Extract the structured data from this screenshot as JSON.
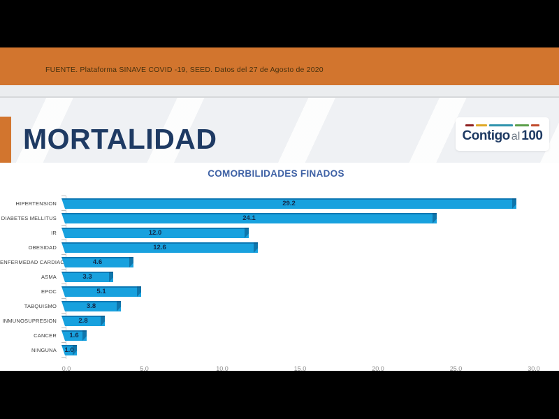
{
  "banner": {
    "source_text": "FUENTE. Plataforma SINAVE COVID -19, SEED. Datos del 27 de Agosto de 2020",
    "background_color": "#d2752e"
  },
  "header": {
    "title": "MORTALIDAD",
    "title_color": "#1e3a63",
    "accent_color": "#d2752e",
    "logo": {
      "part_bold_1": "Contigo",
      "part_light": "al",
      "part_bold_2": "100",
      "dashes": [
        {
          "color": "#8f2020",
          "width": 12
        },
        {
          "color": "#dfa826",
          "width": 16
        },
        {
          "color": "#2e93ac",
          "width": 34
        },
        {
          "color": "#5b9e49",
          "width": 20
        },
        {
          "color": "#c04a2b",
          "width": 12
        }
      ]
    }
  },
  "chart_data": {
    "type": "bar",
    "orientation": "horizontal",
    "title": "COMORBILIDADES FINADOS",
    "title_color": "#3e61a5",
    "categories": [
      "HIPERTENSION",
      "DIABETES MELLITUS",
      "IR",
      "OBESIDAD",
      "ENFERMEDAD CARDIACA",
      "ASMA",
      "EPOC",
      "TABQUISMO",
      "INMUNOSUPRESION",
      "CANCER",
      "NINGUNA"
    ],
    "values": [
      29.2,
      24.1,
      12.0,
      12.6,
      4.6,
      3.3,
      5.1,
      3.8,
      2.8,
      1.6,
      1.0
    ],
    "value_decimals": 1,
    "xlim": [
      0,
      30
    ],
    "x_ticks": [
      "0.0",
      "5.0",
      "10.0",
      "15.0",
      "20.0",
      "25.0",
      "30.0"
    ],
    "grid": false,
    "legend": false,
    "bar_color": "#18a1de",
    "bar_edge_color": "#0d79b4",
    "value_label_color": "#132848"
  }
}
